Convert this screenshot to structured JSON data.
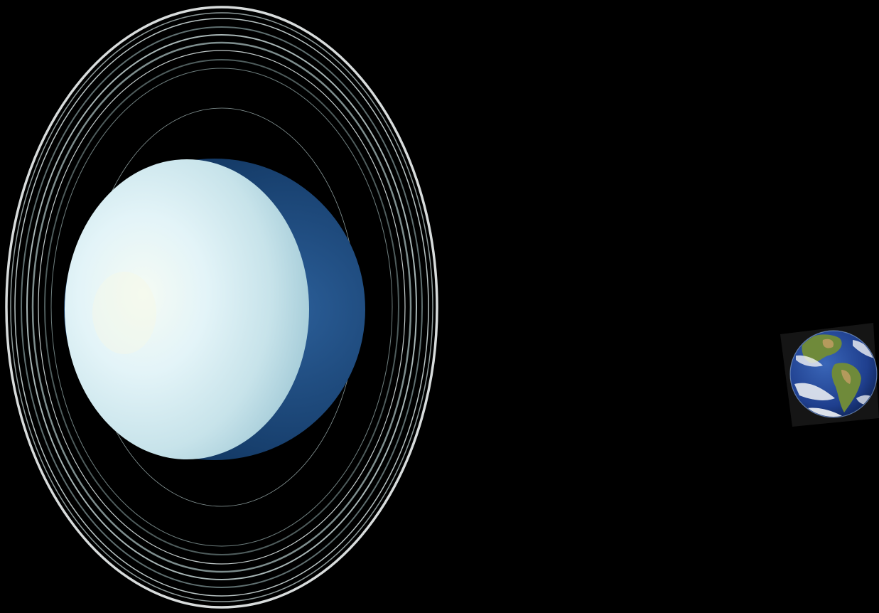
{
  "scene": {
    "subject": "uranus-earth-size-comparison",
    "background_color": "#000000",
    "objects": [
      {
        "name": "uranus",
        "icon": "ringed-planet-icon",
        "colors": {
          "lit": "#e6f6fa",
          "mid": "#bcdde5",
          "shadow": "#1f4f85",
          "ring": "#d8dcdc",
          "ring_dim": "#6f7f80"
        }
      },
      {
        "name": "earth",
        "icon": "earth-globe-icon",
        "colors": {
          "ocean": "#1e3f8f",
          "land": "#6f8a3a",
          "desert": "#b49a5c",
          "cloud": "#f2f4f6",
          "frame": "#151515"
        }
      }
    ]
  }
}
